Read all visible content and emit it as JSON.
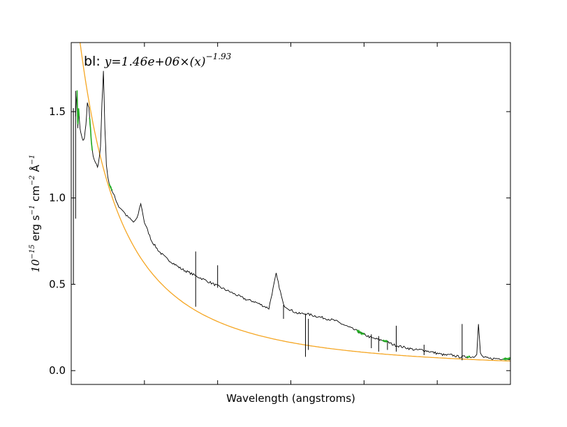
{
  "chart_data": {
    "type": "line",
    "title": "",
    "xlabel": "Wavelength (angstroms)",
    "ylabel_parts": {
      "base": "10",
      "exp1": "−15",
      "mid1": " erg s",
      "exp2": "−1",
      "mid2": " cm",
      "exp3": "−2",
      "mid3": " Å",
      "exp4": "−1"
    },
    "annotation": {
      "prefix": "bl: ",
      "formula": "y=1.46e+06×(x)",
      "exponent": "−1.93"
    },
    "ylim": [
      -0.08,
      1.9
    ],
    "xlim": [
      1000,
      7000
    ],
    "y_ticks": [
      0.0,
      0.5,
      1.0,
      1.5
    ],
    "y_tick_labels": [
      "0.0",
      "0.5",
      "1.0",
      "1.5"
    ],
    "x_tick_labels_shown": false,
    "grid": false,
    "colors": {
      "spectrum": "#000000",
      "fit": "#f5a623",
      "continuum_windows": "#22aa22"
    },
    "fit": {
      "amplitude": 1460000,
      "exponent": -1.93
    },
    "series": [
      {
        "role": "spectrum",
        "x": [
          1060,
          1080,
          1090,
          1100,
          1120,
          1140,
          1160,
          1180,
          1200,
          1220,
          1240,
          1260,
          1280,
          1300,
          1330,
          1360,
          1380,
          1400,
          1420,
          1440,
          1460,
          1480,
          1500,
          1520,
          1540,
          1560,
          1580,
          1600,
          1650,
          1700,
          1750,
          1800,
          1850,
          1900,
          1950,
          2000,
          2100,
          2200,
          2300,
          2400,
          2500,
          2600,
          2700,
          2750,
          2800,
          2850,
          2900,
          3000,
          3100,
          3200,
          3300,
          3400,
          3500,
          3600,
          3700,
          3800,
          3900,
          4000,
          4100,
          4200,
          4300,
          4400,
          4500,
          4600,
          4700,
          4800,
          4900,
          5000,
          5100,
          5200,
          5300,
          5400,
          5500,
          5600,
          5700,
          5800,
          5900,
          6000,
          6100,
          6200,
          6300,
          6400,
          6500,
          6540,
          6563,
          6590,
          6620,
          6700,
          6800,
          6900,
          7000
        ],
        "y": [
          1.48,
          1.62,
          1.4,
          1.52,
          1.4,
          1.36,
          1.33,
          1.35,
          1.42,
          1.55,
          1.52,
          1.42,
          1.3,
          1.24,
          1.2,
          1.18,
          1.22,
          1.3,
          1.55,
          1.73,
          1.4,
          1.2,
          1.12,
          1.08,
          1.06,
          1.04,
          1.02,
          1.0,
          0.95,
          0.93,
          0.9,
          0.88,
          0.86,
          0.88,
          0.97,
          0.86,
          0.75,
          0.69,
          0.65,
          0.62,
          0.59,
          0.57,
          0.55,
          0.54,
          0.53,
          0.52,
          0.51,
          0.49,
          0.47,
          0.45,
          0.43,
          0.41,
          0.4,
          0.38,
          0.36,
          0.56,
          0.38,
          0.35,
          0.33,
          0.33,
          0.32,
          0.31,
          0.3,
          0.29,
          0.27,
          0.25,
          0.23,
          0.21,
          0.19,
          0.18,
          0.17,
          0.15,
          0.14,
          0.13,
          0.12,
          0.12,
          0.11,
          0.1,
          0.09,
          0.09,
          0.08,
          0.08,
          0.08,
          0.1,
          0.27,
          0.1,
          0.08,
          0.07,
          0.07,
          0.07,
          0.07
        ]
      }
    ],
    "spikes": [
      {
        "x": 1030,
        "y_low": 0.5,
        "y_high": 1.52
      },
      {
        "x": 1060,
        "y_low": 0.88,
        "y_high": 1.62
      },
      {
        "x": 2700,
        "y_low": 0.37,
        "y_high": 0.69
      },
      {
        "x": 3000,
        "y_low": 0.48,
        "y_high": 0.61
      },
      {
        "x": 3900,
        "y_low": 0.3,
        "y_high": 0.38
      },
      {
        "x": 4200,
        "y_low": 0.08,
        "y_high": 0.33
      },
      {
        "x": 4240,
        "y_low": 0.12,
        "y_high": 0.3
      },
      {
        "x": 5100,
        "y_low": 0.13,
        "y_high": 0.21
      },
      {
        "x": 5200,
        "y_low": 0.11,
        "y_high": 0.2
      },
      {
        "x": 5320,
        "y_low": 0.12,
        "y_high": 0.17
      },
      {
        "x": 5440,
        "y_low": 0.11,
        "y_high": 0.26
      },
      {
        "x": 5820,
        "y_low": 0.09,
        "y_high": 0.15
      },
      {
        "x": 6340,
        "y_low": 0.06,
        "y_high": 0.27
      }
    ],
    "continuum_windows": [
      [
        1080,
        1110
      ],
      [
        1250,
        1290
      ],
      [
        1520,
        1560
      ],
      [
        4900,
        5000
      ],
      [
        5250,
        5320
      ],
      [
        6400,
        6450
      ],
      [
        6900,
        7000
      ]
    ]
  }
}
